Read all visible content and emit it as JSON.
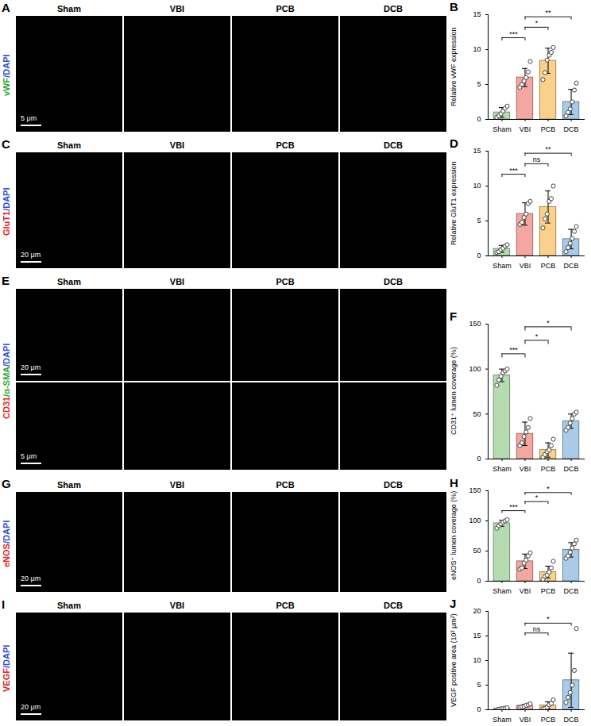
{
  "images": [
    {
      "letter": "A",
      "stain": [
        {
          "text": "vWF",
          "color": "#2ea82e"
        },
        {
          "text": "/DAPI",
          "color": "#2f4fd6"
        }
      ],
      "columns": [
        "Sham",
        "VBI",
        "PCB",
        "DCB"
      ],
      "scale_bars": [
        "5 μm"
      ]
    },
    {
      "letter": "C",
      "stain": [
        {
          "text": "GluT1",
          "color": "#e02020"
        },
        {
          "text": "/DAPI",
          "color": "#2f4fd6"
        }
      ],
      "columns": [
        "Sham",
        "VBI",
        "PCB",
        "DCB"
      ],
      "scale_bars": [
        "20 μm"
      ]
    },
    {
      "letter": "E",
      "stain": [
        {
          "text": "CD31",
          "color": "#e02020"
        },
        {
          "text": "/α-SMA",
          "color": "#2ea82e"
        },
        {
          "text": "/DAPI",
          "color": "#2f4fd6"
        }
      ],
      "columns": [
        "Sham",
        "VBI",
        "PCB",
        "DCB"
      ],
      "scale_bars": [
        "20 μm",
        "5 μm"
      ]
    },
    {
      "letter": "G",
      "stain": [
        {
          "text": "eNOS",
          "color": "#e02020"
        },
        {
          "text": "/DAPI",
          "color": "#2f4fd6"
        }
      ],
      "columns": [
        "Sham",
        "VBI",
        "PCB",
        "DCB"
      ],
      "scale_bars": [
        "20 μm"
      ]
    },
    {
      "letter": "I",
      "stain": [
        {
          "text": "VEGF",
          "color": "#e02020"
        },
        {
          "text": "/DAPI",
          "color": "#2f4fd6"
        }
      ],
      "columns": [
        "Sham",
        "VBI",
        "PCB",
        "DCB"
      ],
      "scale_bars": [
        "20 μm"
      ]
    }
  ],
  "chart_data": [
    {
      "letter": "B",
      "type": "bar",
      "y_label": "Relative vWF expression",
      "categories": [
        "Sham",
        "VBI",
        "PCB",
        "DCB"
      ],
      "colors": [
        "#b5dbb0",
        "#f4a6a0",
        "#fbd08a",
        "#a9cbe8"
      ],
      "values": [
        1.0,
        6.0,
        8.4,
        2.5
      ],
      "errors": [
        0.7,
        1.3,
        1.8,
        1.8
      ],
      "points": [
        [
          0.3,
          0.5,
          0.8,
          1.2,
          1.6,
          1.9
        ],
        [
          4.6,
          5.0,
          5.5,
          6.0,
          6.8,
          8.3
        ],
        [
          5.7,
          6.7,
          8.5,
          9.2,
          9.6,
          10.3
        ],
        [
          0.5,
          1.0,
          1.5,
          2.5,
          4.2,
          5.2
        ]
      ],
      "ylim": [
        0,
        15
      ],
      "yticks": [
        0,
        5,
        10,
        15
      ],
      "comparisons": [
        {
          "from": "Sham",
          "to": "VBI",
          "label": "***"
        },
        {
          "from": "VBI",
          "to": "PCB",
          "label": "*"
        },
        {
          "from": "VBI",
          "to": "DCB",
          "label": "**"
        }
      ]
    },
    {
      "letter": "D",
      "type": "bar",
      "y_label": "Relative GluT1 expression",
      "categories": [
        "Sham",
        "VBI",
        "PCB",
        "DCB"
      ],
      "colors": [
        "#b5dbb0",
        "#f4a6a0",
        "#fbd08a",
        "#a9cbe8"
      ],
      "values": [
        1.0,
        6.0,
        7.0,
        2.4
      ],
      "errors": [
        0.5,
        1.6,
        2.3,
        1.4
      ],
      "points": [
        [
          0.5,
          0.6,
          0.9,
          1.1,
          1.4,
          1.6
        ],
        [
          4.5,
          4.8,
          5.5,
          6.0,
          7.5,
          7.8
        ],
        [
          4.0,
          5.3,
          6.0,
          7.8,
          8.2,
          10.0
        ],
        [
          0.6,
          1.2,
          1.8,
          2.5,
          3.5,
          4.2
        ]
      ],
      "ylim": [
        0,
        15
      ],
      "yticks": [
        0,
        5,
        10,
        15
      ],
      "comparisons": [
        {
          "from": "Sham",
          "to": "VBI",
          "label": "***"
        },
        {
          "from": "VBI",
          "to": "PCB",
          "label": "ns"
        },
        {
          "from": "VBI",
          "to": "DCB",
          "label": "**"
        }
      ]
    },
    {
      "letter": "F",
      "type": "bar",
      "y_label": "CD31⁺ lumen coverage (%)",
      "categories": [
        "Sham",
        "VBI",
        "PCB",
        "DCB"
      ],
      "colors": [
        "#b5dbb0",
        "#f4a6a0",
        "#fbd08a",
        "#a9cbe8"
      ],
      "values": [
        93,
        28,
        10,
        42
      ],
      "errors": [
        7,
        13,
        8,
        8
      ],
      "points": [
        [
          82,
          88,
          92,
          96,
          98,
          100
        ],
        [
          15,
          18,
          25,
          30,
          35,
          45
        ],
        [
          2,
          5,
          8,
          10,
          15,
          22
        ],
        [
          32,
          35,
          40,
          45,
          50,
          52
        ]
      ],
      "ylim": [
        0,
        150
      ],
      "yticks": [
        0,
        50,
        100,
        150
      ],
      "comparisons": [
        {
          "from": "Sham",
          "to": "VBI",
          "label": "***"
        },
        {
          "from": "VBI",
          "to": "PCB",
          "label": "*"
        },
        {
          "from": "VBI",
          "to": "DCB",
          "label": "*"
        }
      ]
    },
    {
      "letter": "H",
      "type": "bar",
      "y_label": "eNOS⁺ lumen coverage (%)",
      "categories": [
        "Sham",
        "VBI",
        "PCB",
        "DCB"
      ],
      "colors": [
        "#b5dbb0",
        "#f4a6a0",
        "#fbd08a",
        "#a9cbe8"
      ],
      "values": [
        96,
        33,
        15,
        52
      ],
      "errors": [
        5,
        12,
        10,
        12
      ],
      "points": [
        [
          88,
          92,
          95,
          98,
          100,
          102
        ],
        [
          20,
          22,
          30,
          35,
          42,
          47
        ],
        [
          3,
          8,
          10,
          15,
          22,
          33
        ],
        [
          38,
          42,
          48,
          55,
          62,
          68
        ]
      ],
      "ylim": [
        0,
        150
      ],
      "yticks": [
        0,
        50,
        100,
        150
      ],
      "comparisons": [
        {
          "from": "Sham",
          "to": "VBI",
          "label": "***"
        },
        {
          "from": "VBI",
          "to": "PCB",
          "label": "*"
        },
        {
          "from": "VBI",
          "to": "DCB",
          "label": "*"
        }
      ]
    },
    {
      "letter": "J",
      "type": "bar",
      "y_label": "VEGF positive area (10³ μm²)",
      "categories": [
        "Sham",
        "VBI",
        "PCB",
        "DCB"
      ],
      "colors": [
        "#b5dbb0",
        "#f4a6a0",
        "#fbd08a",
        "#a9cbe8"
      ],
      "values": [
        0.2,
        0.8,
        0.9,
        6.0
      ],
      "errors": [
        0.2,
        0.3,
        0.7,
        5.5
      ],
      "points": [
        [
          0,
          0.1,
          0.2,
          0.2,
          0.3,
          0.4
        ],
        [
          0.5,
          0.6,
          0.7,
          0.9,
          1.0,
          1.2
        ],
        [
          0.2,
          0.3,
          0.5,
          1.0,
          1.3,
          2.0
        ],
        [
          1.5,
          2.5,
          3.5,
          5.0,
          8.0,
          16.5
        ]
      ],
      "ylim": [
        0,
        20
      ],
      "yticks": [
        0,
        5,
        10,
        15,
        20
      ],
      "comparisons": [
        {
          "from": "VBI",
          "to": "PCB",
          "label": "ns"
        },
        {
          "from": "VBI",
          "to": "DCB",
          "label": "*"
        }
      ]
    }
  ]
}
